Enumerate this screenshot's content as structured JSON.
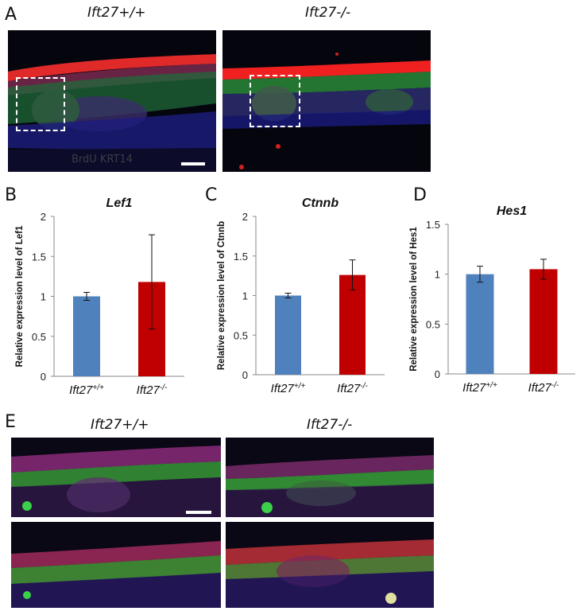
{
  "panel_a": {
    "letter": "A",
    "wt_label": "Ift27+/+",
    "ko_label": "Ift27-/-",
    "wt_stain": "BrdU KRT14"
  },
  "panel_e": {
    "letter": "E",
    "wt_label": "Ift27+/+",
    "ko_label": "Ift27-/-"
  },
  "chart_data": [
    {
      "letter": "B",
      "type": "bar",
      "title": "Lef1",
      "ylabel": "Relative expression level of Lef1",
      "categories": [
        "Ift27+/+",
        "Ift27-/-"
      ],
      "values": [
        1.0,
        1.18
      ],
      "error": [
        0.05,
        0.59
      ],
      "colors": [
        "#4f81bd",
        "#c00000"
      ],
      "ylim": [
        0,
        2
      ],
      "yticks": [
        "0",
        "0.5",
        "1",
        "1.5",
        "2"
      ]
    },
    {
      "letter": "C",
      "type": "bar",
      "title": "Ctnnb",
      "ylabel": "Relative expression level of Ctnnb",
      "categories": [
        "Ift27+/+",
        "Ift27-/-"
      ],
      "values": [
        1.0,
        1.26
      ],
      "error": [
        0.03,
        0.19
      ],
      "colors": [
        "#4f81bd",
        "#c00000"
      ],
      "ylim": [
        0,
        2
      ],
      "yticks": [
        "0",
        "0.5",
        "1",
        "1.5",
        "2"
      ]
    },
    {
      "letter": "D",
      "type": "bar",
      "title": "Hes1",
      "ylabel": "Relative expression level of Hes1",
      "categories": [
        "Ift27+/+",
        "Ift27-/-"
      ],
      "values": [
        1.0,
        1.05
      ],
      "error": [
        0.08,
        0.1
      ],
      "colors": [
        "#4f81bd",
        "#c00000"
      ],
      "ylim": [
        0,
        1.5
      ],
      "yticks": [
        "0",
        "0.5",
        "1",
        "1.5"
      ]
    }
  ]
}
